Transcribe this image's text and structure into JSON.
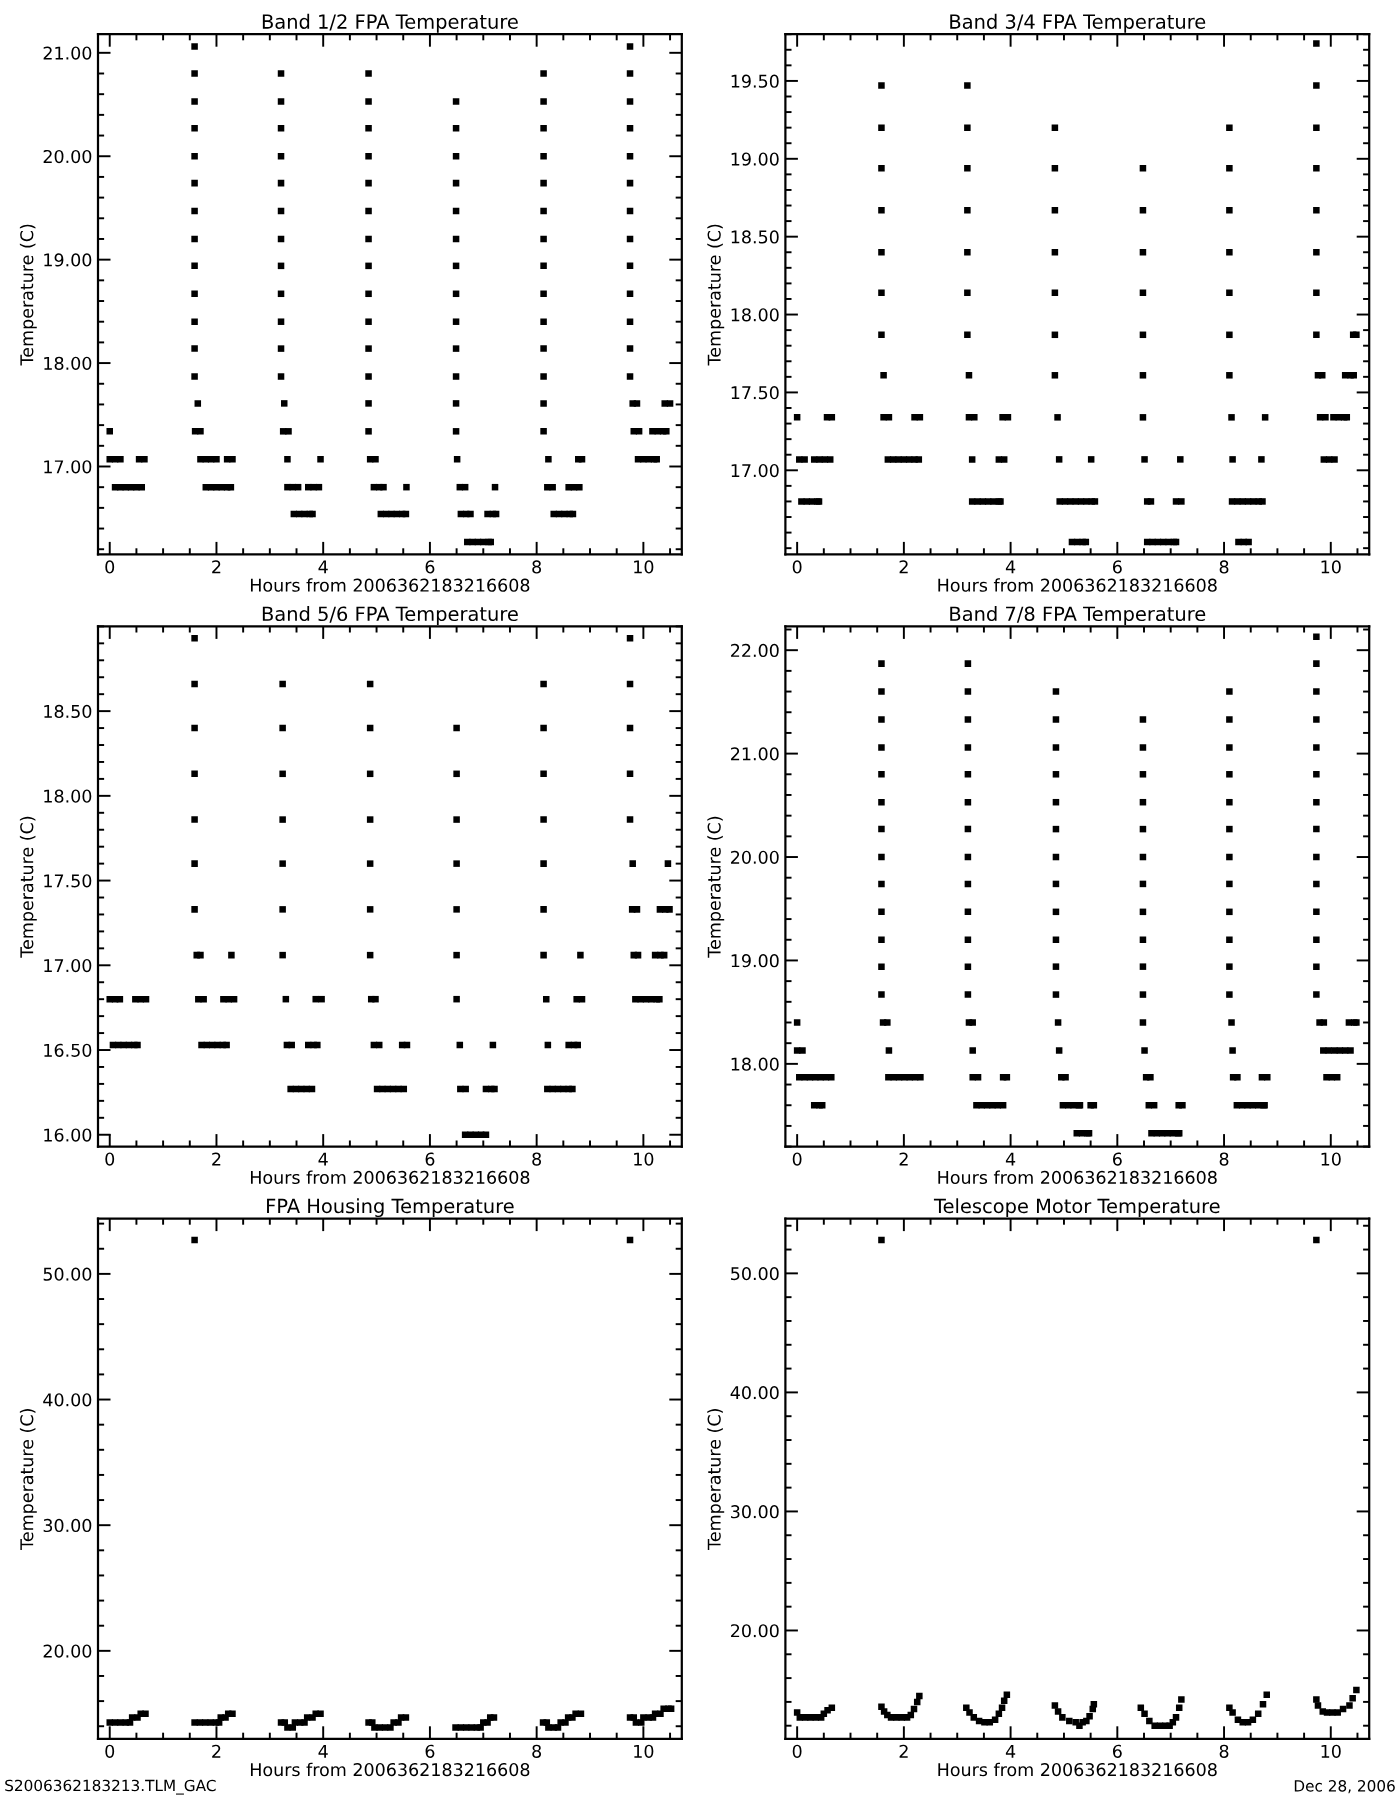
{
  "chart_data": [
    {
      "type": "scatter",
      "title": "Band 1/2 FPA Temperature",
      "xlabel": "Hours from 2006362183216608",
      "ylabel": "Temperature (C)",
      "marker": "square",
      "xlim": [
        -0.22,
        10.72
      ],
      "xticks": [
        0,
        2,
        4,
        6,
        8,
        10
      ],
      "ylim": [
        16.15,
        21.18
      ],
      "yticks": [
        {
          "value": 17,
          "label": "17.00"
        },
        {
          "value": 18,
          "label": "18.00"
        },
        {
          "value": 19,
          "label": "19.00"
        },
        {
          "value": 20,
          "label": "20.00"
        },
        {
          "value": 21,
          "label": "21.00"
        }
      ],
      "series": [
        {
          "color": "#000000",
          "x": [
            0,
            0,
            0.1,
            0.2,
            0.1,
            0.2,
            0.3,
            0.4,
            0.5,
            0.6,
            0.55,
            0.65,
            1.59,
            1.59,
            1.59,
            1.59,
            1.59,
            1.59,
            1.59,
            1.59,
            1.59,
            1.59,
            1.59,
            1.59,
            1.59,
            1.65,
            1.6,
            1.7,
            1.7,
            1.8,
            1.9,
            2,
            1.8,
            1.9,
            2,
            2.1,
            2.2,
            2.27,
            2.2,
            2.3,
            3.21,
            3.21,
            3.21,
            3.21,
            3.21,
            3.21,
            3.21,
            3.21,
            3.21,
            3.21,
            3.21,
            3.21,
            3.27,
            3.25,
            3.35,
            3.33,
            3.33,
            3.43,
            3.53,
            3.45,
            3.55,
            3.65,
            3.75,
            3.8,
            3.72,
            3.82,
            3.92,
            3.95,
            4.85,
            4.85,
            4.85,
            4.85,
            4.85,
            4.85,
            4.85,
            4.85,
            4.85,
            4.85,
            4.85,
            4.85,
            4.85,
            4.85,
            4.88,
            4.98,
            4.95,
            5.05,
            5.13,
            5.08,
            5.18,
            5.28,
            5.38,
            5.48,
            5.55,
            5.56,
            6.49,
            6.49,
            6.49,
            6.49,
            6.49,
            6.49,
            6.49,
            6.49,
            6.49,
            6.49,
            6.49,
            6.49,
            6.49,
            6.51,
            6.56,
            6.66,
            7.22,
            6.58,
            6.68,
            6.76,
            7.08,
            7.18,
            7.24,
            6.7,
            6.8,
            6.9,
            7,
            7.1,
            7.14,
            8.13,
            8.13,
            8.13,
            8.13,
            8.13,
            8.13,
            8.13,
            8.13,
            8.13,
            8.13,
            8.13,
            8.13,
            8.13,
            8.13,
            8.22,
            8.2,
            8.3,
            8.32,
            8.42,
            8.52,
            8.62,
            8.68,
            8.6,
            8.7,
            8.8,
            8.78,
            8.85,
            9.75,
            9.75,
            9.75,
            9.75,
            9.75,
            9.75,
            9.75,
            9.75,
            9.75,
            9.75,
            9.75,
            9.75,
            9.75,
            9.8,
            9.88,
            9.82,
            9.92,
            9.9,
            10,
            10.1,
            10.2,
            10.25,
            10.17,
            10.27,
            10.37,
            10.43,
            10.4,
            10.5
          ],
          "values": [
            17.34,
            17.07,
            17.07,
            17.07,
            16.8,
            16.8,
            16.8,
            16.8,
            16.8,
            16.8,
            17.07,
            17.07,
            17.87,
            18.14,
            18.4,
            18.67,
            18.94,
            19.2,
            19.47,
            19.74,
            20,
            20.27,
            20.53,
            20.8,
            21.06,
            17.61,
            17.34,
            17.34,
            17.07,
            17.07,
            17.07,
            17.07,
            16.8,
            16.8,
            16.8,
            16.8,
            16.8,
            16.8,
            17.07,
            17.07,
            17.87,
            18.14,
            18.4,
            18.67,
            18.94,
            19.2,
            19.47,
            19.74,
            20,
            20.27,
            20.53,
            20.8,
            17.61,
            17.34,
            17.34,
            17.07,
            16.8,
            16.8,
            16.8,
            16.54,
            16.54,
            16.54,
            16.54,
            16.54,
            16.8,
            16.8,
            16.8,
            17.07,
            17.34,
            17.61,
            17.87,
            18.14,
            18.4,
            18.67,
            18.94,
            19.2,
            19.47,
            19.74,
            20,
            20.27,
            20.53,
            20.8,
            17.07,
            17.07,
            16.8,
            16.8,
            16.8,
            16.54,
            16.54,
            16.54,
            16.54,
            16.54,
            16.54,
            16.8,
            17.34,
            17.61,
            17.87,
            18.14,
            18.4,
            18.67,
            18.94,
            19.2,
            19.47,
            19.74,
            20,
            20.27,
            20.53,
            17.07,
            16.8,
            16.8,
            16.8,
            16.54,
            16.54,
            16.54,
            16.54,
            16.54,
            16.54,
            16.27,
            16.27,
            16.27,
            16.27,
            16.27,
            16.27,
            17.34,
            17.61,
            17.87,
            18.14,
            18.4,
            18.67,
            18.94,
            19.2,
            19.47,
            19.74,
            20,
            20.27,
            20.53,
            20.8,
            17.07,
            16.8,
            16.8,
            16.54,
            16.54,
            16.54,
            16.54,
            16.54,
            16.8,
            16.8,
            16.8,
            17.07,
            17.07,
            17.87,
            18.14,
            18.4,
            18.67,
            18.94,
            19.2,
            19.47,
            19.74,
            20,
            20.27,
            20.53,
            20.8,
            21.06,
            17.61,
            17.61,
            17.34,
            17.34,
            17.07,
            17.07,
            17.07,
            17.07,
            17.07,
            17.34,
            17.34,
            17.34,
            17.34,
            17.61,
            17.61
          ]
        }
      ]
    },
    {
      "type": "scatter",
      "title": "Band 3/4 FPA Temperature",
      "xlabel": "Hours from 2006362183216608",
      "ylabel": "Temperature (C)",
      "marker": "square",
      "xlim": [
        -0.22,
        10.72
      ],
      "xticks": [
        0,
        2,
        4,
        6,
        8,
        10
      ],
      "ylim": [
        16.46,
        19.8
      ],
      "yticks": [
        {
          "value": 17,
          "label": "17.00"
        },
        {
          "value": 17.5,
          "label": "17.50"
        },
        {
          "value": 18,
          "label": "18.00"
        },
        {
          "value": 18.5,
          "label": "18.50"
        },
        {
          "value": 19,
          "label": "19.00"
        },
        {
          "value": 19.5,
          "label": "19.50"
        }
      ],
      "series": [
        {
          "color": "#000000",
          "x": [
            0,
            0.04,
            0.14,
            0.08,
            0.18,
            0.28,
            0.38,
            0.41,
            0.32,
            0.42,
            0.52,
            0.62,
            0.56,
            0.65,
            1.58,
            1.58,
            1.58,
            1.58,
            1.58,
            1.58,
            1.58,
            1.62,
            1.62,
            1.72,
            1.7,
            1.8,
            1.9,
            2,
            2.1,
            2.2,
            2.28,
            2.2,
            2.3,
            3.19,
            3.19,
            3.19,
            3.19,
            3.19,
            3.19,
            3.19,
            3.22,
            3.22,
            3.32,
            3.28,
            3.28,
            3.38,
            3.48,
            3.58,
            3.68,
            3.78,
            3.81,
            3.78,
            3.88,
            3.85,
            3.95,
            4.83,
            4.83,
            4.83,
            4.83,
            4.83,
            4.83,
            4.83,
            4.88,
            4.91,
            4.92,
            5.02,
            5.12,
            5.22,
            5.32,
            5.42,
            5.52,
            5.58,
            5.15,
            5.25,
            5.35,
            5.41,
            5.51,
            6.48,
            6.48,
            6.48,
            6.48,
            6.48,
            6.48,
            6.48,
            6.51,
            6.56,
            6.63,
            7.1,
            7.2,
            6.56,
            6.66,
            6.76,
            6.86,
            6.96,
            7.06,
            7.1,
            7.18,
            8.1,
            8.1,
            8.1,
            8.1,
            8.1,
            8.1,
            8.1,
            8.14,
            8.16,
            8.15,
            8.25,
            8.35,
            8.45,
            8.55,
            8.65,
            8.72,
            8.27,
            8.37,
            8.46,
            8.7,
            8.77,
            9.73,
            9.73,
            9.73,
            9.73,
            9.73,
            9.73,
            9.73,
            9.73,
            9.76,
            9.84,
            9.8,
            9.9,
            9.87,
            9.97,
            10.07,
            10.05,
            10.15,
            10.25,
            10.3,
            10.27,
            10.37,
            10.43,
            10.42,
            10.48
          ],
          "values": [
            17.34,
            17.07,
            17.07,
            16.8,
            16.8,
            16.8,
            16.8,
            16.8,
            17.07,
            17.07,
            17.07,
            17.07,
            17.34,
            17.34,
            17.87,
            18.14,
            18.4,
            18.67,
            18.94,
            19.2,
            19.47,
            17.61,
            17.34,
            17.34,
            17.07,
            17.07,
            17.07,
            17.07,
            17.07,
            17.07,
            17.07,
            17.34,
            17.34,
            17.87,
            18.14,
            18.4,
            18.67,
            18.94,
            19.2,
            19.47,
            17.61,
            17.34,
            17.34,
            17.07,
            16.8,
            16.8,
            16.8,
            16.8,
            16.8,
            16.8,
            16.8,
            17.07,
            17.07,
            17.34,
            17.34,
            17.61,
            17.87,
            18.14,
            18.4,
            18.67,
            18.94,
            19.2,
            17.34,
            17.07,
            16.8,
            16.8,
            16.8,
            16.8,
            16.8,
            16.8,
            16.8,
            16.8,
            16.54,
            16.54,
            16.54,
            16.54,
            17.07,
            17.34,
            17.61,
            17.87,
            18.14,
            18.4,
            18.67,
            18.94,
            17.07,
            16.8,
            16.8,
            16.8,
            16.8,
            16.54,
            16.54,
            16.54,
            16.54,
            16.54,
            16.54,
            16.54,
            17.07,
            17.61,
            17.87,
            18.14,
            18.4,
            18.67,
            18.94,
            19.2,
            17.34,
            17.07,
            16.8,
            16.8,
            16.8,
            16.8,
            16.8,
            16.8,
            16.8,
            16.54,
            16.54,
            16.54,
            17.07,
            17.34,
            17.87,
            18.14,
            18.4,
            18.67,
            18.94,
            19.2,
            19.47,
            19.74,
            17.61,
            17.61,
            17.34,
            17.34,
            17.07,
            17.07,
            17.07,
            17.34,
            17.34,
            17.34,
            17.34,
            17.61,
            17.61,
            17.61,
            17.87,
            17.87
          ]
        }
      ]
    },
    {
      "type": "scatter",
      "title": "Band 5/6 FPA Temperature",
      "xlabel": "Hours from 2006362183216608",
      "ylabel": "Temperature (C)",
      "marker": "square",
      "xlim": [
        -0.22,
        10.72
      ],
      "xticks": [
        0,
        2,
        4,
        6,
        8,
        10
      ],
      "ylim": [
        15.93,
        19.0
      ],
      "yticks": [
        {
          "value": 16,
          "label": "16.00"
        },
        {
          "value": 16.5,
          "label": "16.50"
        },
        {
          "value": 17,
          "label": "17.00"
        },
        {
          "value": 17.5,
          "label": "17.50"
        },
        {
          "value": 18,
          "label": "18.00"
        },
        {
          "value": 18.5,
          "label": "18.50"
        }
      ],
      "series": [
        {
          "color": "#000000",
          "x": [
            0,
            0.1,
            0.19,
            0.06,
            0.16,
            0.26,
            0.36,
            0.46,
            0.52,
            0.48,
            0.58,
            0.68,
            1.59,
            1.59,
            1.59,
            1.59,
            1.59,
            1.59,
            1.59,
            1.63,
            1.7,
            1.66,
            1.76,
            1.72,
            1.82,
            1.92,
            2.02,
            2.12,
            2.19,
            2.13,
            2.23,
            2.33,
            2.28,
            3.24,
            3.24,
            3.24,
            3.24,
            3.24,
            3.24,
            3.24,
            3.3,
            3.32,
            3.41,
            3.39,
            3.49,
            3.59,
            3.69,
            3.79,
            3.72,
            3.82,
            3.89,
            3.86,
            3.97,
            4.88,
            4.88,
            4.88,
            4.88,
            4.88,
            4.88,
            4.88,
            4.9,
            4.98,
            4.95,
            5.05,
            5.01,
            5.11,
            5.21,
            5.31,
            5.41,
            5.51,
            5.48,
            5.57,
            6.5,
            6.5,
            6.5,
            6.5,
            6.5,
            6.5,
            6.5,
            6.56,
            7.18,
            6.57,
            6.67,
            7.05,
            7.15,
            7.21,
            6.66,
            6.76,
            6.86,
            6.96,
            7.05,
            8.13,
            8.13,
            8.13,
            8.13,
            8.13,
            8.13,
            8.13,
            8.18,
            8.21,
            8.2,
            8.3,
            8.4,
            8.5,
            8.6,
            8.67,
            8.6,
            8.7,
            8.77,
            8.75,
            8.85,
            8.82,
            9.75,
            9.75,
            9.75,
            9.75,
            9.75,
            9.8,
            9.79,
            9.88,
            9.82,
            9.9,
            9.85,
            9.95,
            10.05,
            10.15,
            10.25,
            10.3,
            10.22,
            10.32,
            10.39,
            10.31,
            10.41,
            10.49,
            10.46
          ],
          "values": [
            16.8,
            16.8,
            16.8,
            16.53,
            16.53,
            16.53,
            16.53,
            16.53,
            16.53,
            16.8,
            16.8,
            16.8,
            17.33,
            17.6,
            17.86,
            18.13,
            18.4,
            18.66,
            18.93,
            17.06,
            17.06,
            16.8,
            16.8,
            16.53,
            16.53,
            16.53,
            16.53,
            16.53,
            16.53,
            16.8,
            16.8,
            16.8,
            17.06,
            17.06,
            17.33,
            17.6,
            17.86,
            18.13,
            18.4,
            18.66,
            16.8,
            16.53,
            16.53,
            16.27,
            16.27,
            16.27,
            16.27,
            16.27,
            16.53,
            16.53,
            16.53,
            16.8,
            16.8,
            17.06,
            17.33,
            17.6,
            17.86,
            18.13,
            18.4,
            18.66,
            16.8,
            16.8,
            16.53,
            16.53,
            16.27,
            16.27,
            16.27,
            16.27,
            16.27,
            16.27,
            16.53,
            16.53,
            16.8,
            17.06,
            17.33,
            17.6,
            17.86,
            18.13,
            18.4,
            16.53,
            16.53,
            16.27,
            16.27,
            16.27,
            16.27,
            16.27,
            16,
            16,
            16,
            16,
            16,
            17.06,
            17.33,
            17.6,
            17.86,
            18.13,
            18.4,
            18.66,
            16.8,
            16.53,
            16.27,
            16.27,
            16.27,
            16.27,
            16.27,
            16.27,
            16.53,
            16.53,
            16.53,
            16.8,
            16.8,
            17.06,
            17.86,
            18.13,
            18.4,
            18.66,
            18.93,
            17.6,
            17.33,
            17.33,
            17.06,
            17.06,
            16.8,
            16.8,
            16.8,
            16.8,
            16.8,
            16.8,
            17.06,
            17.06,
            17.06,
            17.33,
            17.33,
            17.33,
            17.6
          ]
        }
      ]
    },
    {
      "type": "scatter",
      "title": "Band 7/8 FPA Temperature",
      "xlabel": "Hours from 2006362183216608",
      "ylabel": "Temperature (C)",
      "marker": "square",
      "xlim": [
        -0.22,
        10.72
      ],
      "xticks": [
        0,
        2,
        4,
        6,
        8,
        10
      ],
      "ylim": [
        17.2,
        22.23
      ],
      "yticks": [
        {
          "value": 18,
          "label": "18.00"
        },
        {
          "value": 19,
          "label": "19.00"
        },
        {
          "value": 20,
          "label": "20.00"
        },
        {
          "value": 21,
          "label": "21.00"
        },
        {
          "value": 22,
          "label": "22.00"
        }
      ],
      "series": [
        {
          "color": "#000000",
          "x": [
            0,
            0,
            0.1,
            0.04,
            0.14,
            0.24,
            0.34,
            0.44,
            0.54,
            0.64,
            0.32,
            0.42,
            0.47,
            1.58,
            1.58,
            1.58,
            1.58,
            1.58,
            1.58,
            1.58,
            1.58,
            1.58,
            1.58,
            1.58,
            1.58,
            1.58,
            1.61,
            1.69,
            1.72,
            1.71,
            1.81,
            1.91,
            2.01,
            2.11,
            2.21,
            2.31,
            3.2,
            3.2,
            3.2,
            3.2,
            3.2,
            3.2,
            3.2,
            3.2,
            3.2,
            3.2,
            3.2,
            3.2,
            3.2,
            3.22,
            3.29,
            3.29,
            3.29,
            3.39,
            3.36,
            3.46,
            3.56,
            3.66,
            3.76,
            3.86,
            3.86,
            3.93,
            4.85,
            4.85,
            4.85,
            4.85,
            4.85,
            4.85,
            4.85,
            4.85,
            4.85,
            4.85,
            4.85,
            4.85,
            4.89,
            4.91,
            4.95,
            5.03,
            4.98,
            5.08,
            5.18,
            5.28,
            5.3,
            5.24,
            5.34,
            5.44,
            5.47,
            5.5,
            5.56,
            6.48,
            6.48,
            6.48,
            6.48,
            6.48,
            6.48,
            6.48,
            6.48,
            6.48,
            6.48,
            6.48,
            6.48,
            6.51,
            6.54,
            6.62,
            6.59,
            6.69,
            7.15,
            7.22,
            6.64,
            6.74,
            6.84,
            6.94,
            7.04,
            7.14,
            7.16,
            8.1,
            8.1,
            8.1,
            8.1,
            8.1,
            8.1,
            8.1,
            8.1,
            8.1,
            8.1,
            8.1,
            8.1,
            8.14,
            8.16,
            8.17,
            8.25,
            8.24,
            8.34,
            8.44,
            8.54,
            8.64,
            8.74,
            8.76,
            8.71,
            8.81,
            9.73,
            9.73,
            9.73,
            9.73,
            9.73,
            9.73,
            9.73,
            9.73,
            9.73,
            9.73,
            9.73,
            9.73,
            9.73,
            9.73,
            9.79,
            9.87,
            9.86,
            9.96,
            9.92,
            10.02,
            10.12,
            10.07,
            10.17,
            10.27,
            10.37,
            10.34,
            10.44,
            10.48
          ],
          "values": [
            18.4,
            18.13,
            18.13,
            17.87,
            17.87,
            17.87,
            17.87,
            17.87,
            17.87,
            17.87,
            17.6,
            17.6,
            17.6,
            18.67,
            18.94,
            19.2,
            19.47,
            19.74,
            20,
            20.27,
            20.53,
            20.8,
            21.06,
            21.33,
            21.6,
            21.87,
            18.4,
            18.4,
            18.13,
            17.87,
            17.87,
            17.87,
            17.87,
            17.87,
            17.87,
            17.87,
            18.67,
            18.94,
            19.2,
            19.47,
            19.74,
            20,
            20.27,
            20.53,
            20.8,
            21.06,
            21.33,
            21.6,
            21.87,
            18.4,
            18.4,
            18.13,
            17.87,
            17.87,
            17.6,
            17.6,
            17.6,
            17.6,
            17.6,
            17.6,
            17.87,
            17.87,
            18.67,
            18.94,
            19.2,
            19.47,
            19.74,
            20,
            20.27,
            20.53,
            20.8,
            21.06,
            21.33,
            21.6,
            18.4,
            18.13,
            17.87,
            17.87,
            17.6,
            17.6,
            17.6,
            17.6,
            17.6,
            17.33,
            17.33,
            17.33,
            17.33,
            17.6,
            17.6,
            18.4,
            18.67,
            18.94,
            19.2,
            19.47,
            19.74,
            20,
            20.27,
            20.53,
            20.8,
            21.06,
            21.33,
            18.13,
            17.87,
            17.87,
            17.6,
            17.6,
            17.6,
            17.6,
            17.33,
            17.33,
            17.33,
            17.33,
            17.33,
            17.33,
            17.33,
            18.67,
            18.94,
            19.2,
            19.47,
            19.74,
            20,
            20.27,
            20.53,
            20.8,
            21.06,
            21.33,
            21.6,
            18.4,
            18.13,
            17.87,
            17.87,
            17.6,
            17.6,
            17.6,
            17.6,
            17.6,
            17.6,
            17.6,
            17.87,
            17.87,
            18.67,
            18.94,
            19.2,
            19.47,
            19.74,
            20,
            20.27,
            20.53,
            20.8,
            21.06,
            21.33,
            21.6,
            21.87,
            22.13,
            18.4,
            18.4,
            18.13,
            18.13,
            17.87,
            17.87,
            17.87,
            18.13,
            18.13,
            18.13,
            18.13,
            18.4,
            18.4,
            18.4
          ]
        }
      ]
    },
    {
      "type": "scatter",
      "title": "FPA Housing Temperature",
      "xlabel": "Hours from 2006362183216608",
      "ylabel": "Temperature (C)",
      "marker": "square",
      "xlim": [
        -0.22,
        10.72
      ],
      "xticks": [
        0,
        2,
        4,
        6,
        8,
        10
      ],
      "ylim": [
        13.0,
        54.4
      ],
      "yticks": [
        {
          "value": 20,
          "label": "20.00"
        },
        {
          "value": 30,
          "label": "30.00"
        },
        {
          "value": 40,
          "label": "40.00"
        },
        {
          "value": 50,
          "label": "50.00"
        }
      ],
      "annotations": [
        "S2006362183213.TLM_GAC"
      ],
      "series": [
        {
          "color": "#000000",
          "x": [
            1.59,
            9.75,
            0,
            0.1,
            0.2,
            0.3,
            0.38,
            0.42,
            0.52,
            0.58,
            0.67,
            1.59,
            1.69,
            1.79,
            1.89,
            1.99,
            2.05,
            2.08,
            2.17,
            2.22,
            2.3,
            3.21,
            3.28,
            3.33,
            3.43,
            3.47,
            3.57,
            3.65,
            3.7,
            3.8,
            3.86,
            3.95,
            4.85,
            4.92,
            4.96,
            5.06,
            5.16,
            5.26,
            5.32,
            5.41,
            5.46,
            5.55,
            6.48,
            6.58,
            6.68,
            6.78,
            6.88,
            6.95,
            7,
            7.08,
            7.13,
            7.2,
            8.12,
            8.19,
            8.22,
            8.32,
            8.4,
            8.45,
            8.54,
            8.59,
            8.67,
            8.73,
            8.83,
            9.75,
            9.82,
            9.86,
            9.96,
            10,
            10.1,
            10.18,
            10.22,
            10.32,
            10.38,
            10.47,
            10.52
          ],
          "values": [
            52.7,
            52.7,
            14.3,
            14.3,
            14.3,
            14.3,
            14.3,
            14.7,
            14.7,
            15,
            15,
            14.3,
            14.3,
            14.3,
            14.3,
            14.3,
            14.3,
            14.7,
            14.7,
            15,
            15,
            14.3,
            14.3,
            13.9,
            13.9,
            14.3,
            14.3,
            14.3,
            14.7,
            14.7,
            15,
            15,
            14.3,
            14.3,
            13.9,
            13.9,
            13.9,
            13.9,
            14.3,
            14.3,
            14.7,
            14.7,
            13.9,
            13.9,
            13.9,
            13.9,
            13.9,
            13.9,
            14.3,
            14.3,
            14.7,
            14.7,
            14.3,
            14.3,
            13.9,
            13.9,
            13.9,
            14.3,
            14.3,
            14.7,
            14.7,
            15,
            15,
            14.7,
            14.7,
            14.3,
            14.3,
            14.7,
            14.7,
            14.7,
            15,
            15,
            15.4,
            15.4,
            15.4
          ]
        }
      ]
    },
    {
      "type": "scatter",
      "title": "Telescope Motor Temperature",
      "xlabel": "Hours from 2006362183216608",
      "ylabel": "Temperature (C)",
      "marker": "square",
      "xlim": [
        -0.22,
        10.72
      ],
      "xticks": [
        0,
        2,
        4,
        6,
        8,
        10
      ],
      "ylim": [
        10.9,
        54.6
      ],
      "yticks": [
        {
          "value": 20,
          "label": "20.00"
        },
        {
          "value": 30,
          "label": "30.00"
        },
        {
          "value": 40,
          "label": "40.00"
        },
        {
          "value": 50,
          "label": "50.00"
        }
      ],
      "annotations": [
        "Dec 28, 2006"
      ],
      "series": [
        {
          "color": "#000000",
          "x": [
            1.58,
            9.73,
            0,
            0.05,
            0.15,
            0.25,
            0.35,
            0.45,
            0.5,
            0.57,
            0.65,
            1.58,
            1.63,
            1.69,
            1.76,
            1.86,
            1.96,
            2.06,
            2.13,
            2.19,
            2.25,
            2.29,
            3.17,
            3.23,
            3.31,
            3.41,
            3.51,
            3.61,
            3.71,
            3.78,
            3.84,
            3.88,
            3.93,
            4.83,
            4.89,
            4.97,
            5.1,
            5.22,
            5.29,
            5.35,
            5.42,
            5.48,
            5.54,
            5.56,
            6.44,
            6.51,
            6.6,
            6.7,
            6.8,
            6.9,
            6.98,
            7.04,
            7.1,
            7.16,
            7.2,
            8.1,
            8.16,
            8.26,
            8.35,
            8.45,
            8.54,
            8.64,
            8.73,
            8.8,
            9.73,
            9.76,
            9.85,
            9.93,
            10.03,
            10.13,
            10.23,
            10.35,
            10.41,
            10.48
          ],
          "values": [
            52.8,
            52.8,
            13.1,
            12.7,
            12.7,
            12.7,
            12.7,
            12.7,
            13,
            13.3,
            13.5,
            13.6,
            13.2,
            12.9,
            12.7,
            12.7,
            12.7,
            12.7,
            12.9,
            13.4,
            14,
            14.5,
            13.5,
            13.1,
            12.7,
            12.4,
            12.3,
            12.3,
            12.5,
            13,
            13.5,
            14.1,
            14.6,
            13.7,
            13.2,
            12.7,
            12.4,
            12.3,
            12,
            12.3,
            12.4,
            12.8,
            13.4,
            13.8,
            13.5,
            13,
            12.4,
            12,
            12,
            12,
            12,
            12.3,
            12.7,
            13.5,
            14.2,
            13.5,
            13.1,
            12.5,
            12.3,
            12.3,
            12.5,
            13,
            13.8,
            14.6,
            14.2,
            13.7,
            13.2,
            13.1,
            13.1,
            13.1,
            13.4,
            13.7,
            14.3,
            15
          ]
        }
      ]
    }
  ]
}
